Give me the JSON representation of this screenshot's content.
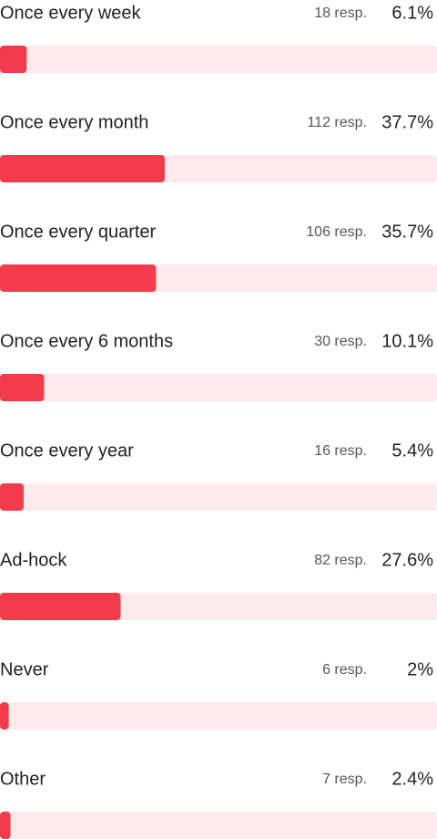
{
  "chart_data": {
    "type": "bar",
    "categories": [
      "Once every week",
      "Once every month",
      "Once every quarter",
      "Once every 6 months",
      "Once every year",
      "Ad-hock",
      "Never",
      "Other"
    ],
    "values": [
      6.1,
      37.7,
      35.7,
      10.1,
      5.4,
      27.6,
      2,
      2.4
    ],
    "value_labels": [
      "6.1%",
      "37.7%",
      "35.7%",
      "10.1%",
      "5.4%",
      "27.6%",
      "2%",
      "2.4%"
    ],
    "response_labels": [
      "18 resp.",
      "112 resp.",
      "106 resp.",
      "30 resp.",
      "16 resp.",
      "82 resp.",
      "6 resp.",
      "7 resp."
    ],
    "xlim": [
      0,
      100
    ],
    "color": "#f43b4c",
    "track_color": "#feeaea"
  }
}
